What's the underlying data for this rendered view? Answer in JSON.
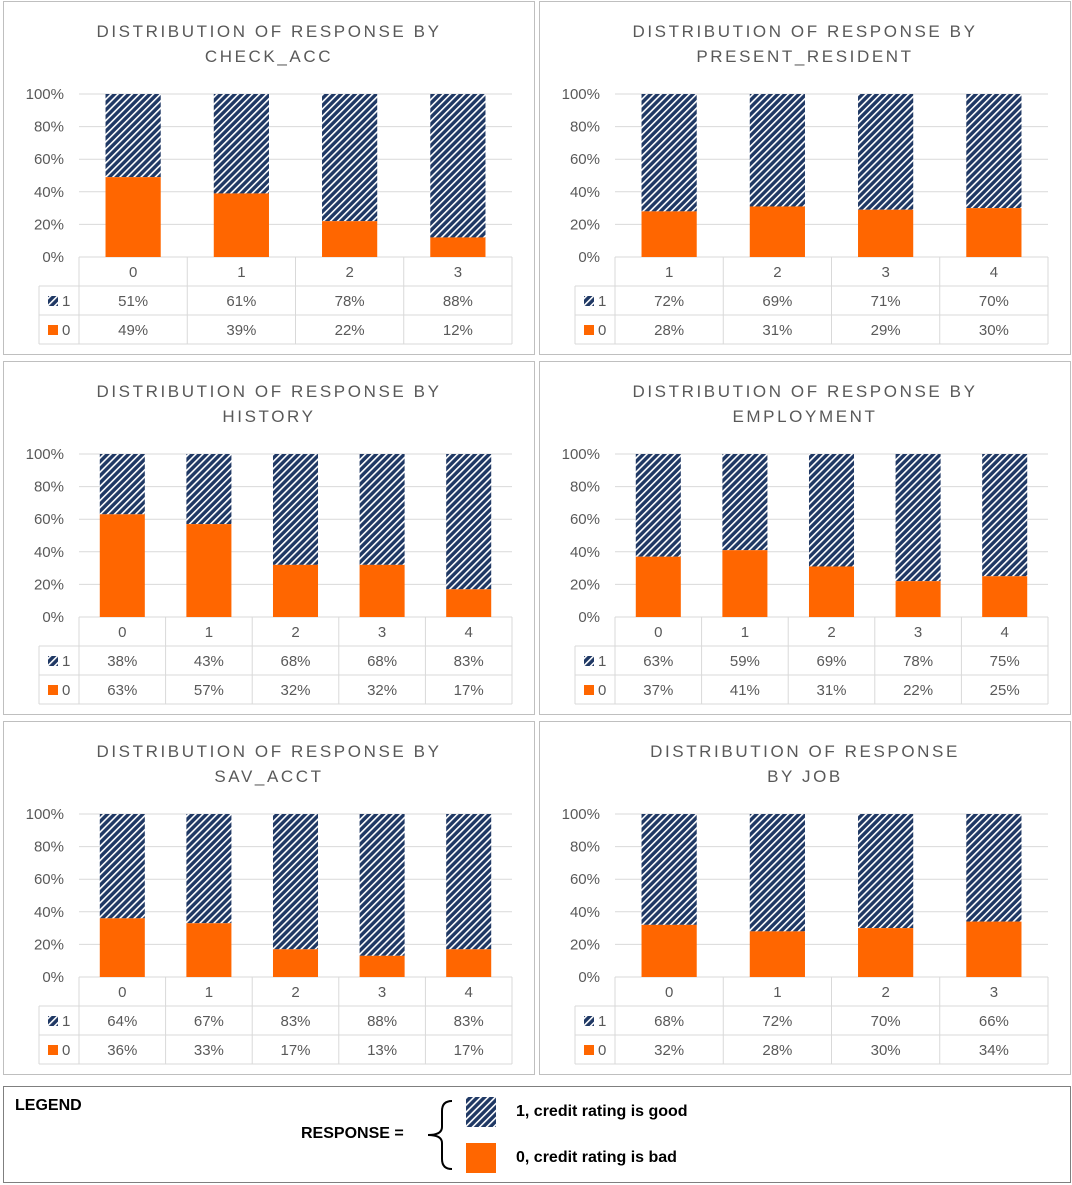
{
  "colors": {
    "good": "#1f3864",
    "bad": "#ff6600",
    "grid": "#d9d9d9",
    "text": "#595959"
  },
  "chart_data": [
    {
      "type": "bar",
      "title_lines": [
        "DISTRIBUTION OF RESPONSE BY",
        "CHECK_ACC"
      ],
      "yticks": [
        "0%",
        "20%",
        "40%",
        "60%",
        "80%",
        "100%"
      ],
      "ylim": [
        0,
        100
      ],
      "categories": [
        "0",
        "1",
        "2",
        "3"
      ],
      "series": [
        {
          "name": "1",
          "values": [
            51,
            61,
            78,
            88
          ],
          "labels": [
            "51%",
            "61%",
            "78%",
            "88%"
          ]
        },
        {
          "name": "0",
          "values": [
            49,
            39,
            22,
            12
          ],
          "labels": [
            "49%",
            "39%",
            "22%",
            "12%"
          ]
        }
      ]
    },
    {
      "type": "bar",
      "title_lines": [
        "DISTRIBUTION OF RESPONSE BY",
        "PRESENT_RESIDENT"
      ],
      "yticks": [
        "0%",
        "20%",
        "40%",
        "60%",
        "80%",
        "100%"
      ],
      "ylim": [
        0,
        100
      ],
      "categories": [
        "1",
        "2",
        "3",
        "4"
      ],
      "series": [
        {
          "name": "1",
          "values": [
            72,
            69,
            71,
            70
          ],
          "labels": [
            "72%",
            "69%",
            "71%",
            "70%"
          ]
        },
        {
          "name": "0",
          "values": [
            28,
            31,
            29,
            30
          ],
          "labels": [
            "28%",
            "31%",
            "29%",
            "30%"
          ]
        }
      ]
    },
    {
      "type": "bar",
      "title_lines": [
        "DISTRIBUTION OF RESPONSE BY",
        "HISTORY"
      ],
      "yticks": [
        "0%",
        "20%",
        "40%",
        "60%",
        "80%",
        "100%"
      ],
      "ylim": [
        0,
        100
      ],
      "categories": [
        "0",
        "1",
        "2",
        "3",
        "4"
      ],
      "series": [
        {
          "name": "1",
          "values": [
            38,
            43,
            68,
            68,
            83
          ],
          "labels": [
            "38%",
            "43%",
            "68%",
            "68%",
            "83%"
          ]
        },
        {
          "name": "0",
          "values": [
            63,
            57,
            32,
            32,
            17
          ],
          "labels": [
            "63%",
            "57%",
            "32%",
            "32%",
            "17%"
          ]
        }
      ]
    },
    {
      "type": "bar",
      "title_lines": [
        "DISTRIBUTION OF RESPONSE BY",
        "EMPLOYMENT"
      ],
      "yticks": [
        "0%",
        "20%",
        "40%",
        "60%",
        "80%",
        "100%"
      ],
      "ylim": [
        0,
        100
      ],
      "categories": [
        "0",
        "1",
        "2",
        "3",
        "4"
      ],
      "series": [
        {
          "name": "1",
          "values": [
            63,
            59,
            69,
            78,
            75
          ],
          "labels": [
            "63%",
            "59%",
            "69%",
            "78%",
            "75%"
          ]
        },
        {
          "name": "0",
          "values": [
            37,
            41,
            31,
            22,
            25
          ],
          "labels": [
            "37%",
            "41%",
            "31%",
            "22%",
            "25%"
          ]
        }
      ]
    },
    {
      "type": "bar",
      "title_lines": [
        "DISTRIBUTION OF RESPONSE BY",
        "SAV_ACCT"
      ],
      "yticks": [
        "0%",
        "20%",
        "40%",
        "60%",
        "80%",
        "100%"
      ],
      "ylim": [
        0,
        100
      ],
      "categories": [
        "0",
        "1",
        "2",
        "3",
        "4"
      ],
      "series": [
        {
          "name": "1",
          "values": [
            64,
            67,
            83,
            88,
            83
          ],
          "labels": [
            "64%",
            "67%",
            "83%",
            "88%",
            "83%"
          ]
        },
        {
          "name": "0",
          "values": [
            36,
            33,
            17,
            13,
            17
          ],
          "labels": [
            "36%",
            "33%",
            "17%",
            "13%",
            "17%"
          ]
        }
      ]
    },
    {
      "type": "bar",
      "title_lines": [
        "DISTRIBUTION OF RESPONSE",
        "BY JOB"
      ],
      "yticks": [
        "0%",
        "20%",
        "40%",
        "60%",
        "80%",
        "100%"
      ],
      "ylim": [
        0,
        100
      ],
      "categories": [
        "0",
        "1",
        "2",
        "3"
      ],
      "series": [
        {
          "name": "1",
          "values": [
            68,
            72,
            70,
            66
          ],
          "labels": [
            "68%",
            "72%",
            "70%",
            "66%"
          ]
        },
        {
          "name": "0",
          "values": [
            32,
            28,
            30,
            34
          ],
          "labels": [
            "32%",
            "28%",
            "30%",
            "34%"
          ]
        }
      ]
    }
  ],
  "legend": {
    "title": "LEGEND",
    "response_label": "RESPONSE =",
    "good_label": "1, credit rating is good",
    "bad_label": "0, credit rating is bad"
  }
}
